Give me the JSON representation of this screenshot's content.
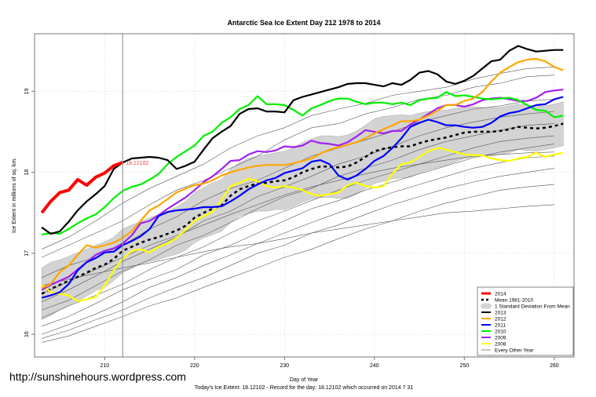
{
  "chart_data": {
    "type": "line",
    "title": "Antarctic Sea Ice Extent Day 212 1978 to 2014",
    "xlabel": "Day of Year",
    "ylabel": "Ice Extent in millions of sq. km.",
    "xlim": [
      202.2,
      262.2
    ],
    "ylim": [
      15.72,
      19.71
    ],
    "x_ticks": [
      210,
      220,
      230,
      240,
      250,
      260
    ],
    "y_ticks": [
      16,
      17,
      18,
      19
    ],
    "grid": true,
    "legend_position": "bottom-right",
    "current_day": 212,
    "current_value_label": "18.12102",
    "footer": "Today's Ice Extent: 18.12102  - Record for the day: 18.12102 which occurred on 2014 7 31",
    "watermark": "http://sunshinehours.wordpress.com",
    "x_start": 203,
    "mean": {
      "name": "Mean 1981-2010",
      "color": "#000000",
      "values": [
        16.5,
        16.56,
        16.61,
        16.66,
        16.71,
        16.76,
        16.82,
        16.86,
        16.93,
        17.03,
        17.08,
        17.13,
        17.17,
        17.2,
        17.24,
        17.28,
        17.34,
        17.44,
        17.5,
        17.55,
        17.59,
        17.71,
        17.79,
        17.83,
        17.86,
        17.87,
        17.89,
        17.9,
        17.94,
        18.0,
        18.04,
        18.07,
        18.07,
        18.06,
        18.07,
        18.12,
        18.19,
        18.26,
        18.29,
        18.31,
        18.32,
        18.32,
        18.36,
        18.39,
        18.41,
        18.43,
        18.46,
        18.49,
        18.5,
        18.5,
        18.5,
        18.51,
        18.53,
        18.56,
        18.55,
        18.54,
        18.55,
        18.57,
        18.6
      ]
    },
    "sd_band": {
      "name": "1 Standard Deviation From Mean",
      "color": "#d3d3d3",
      "values": [
        0.32,
        0.33,
        0.31,
        0.3,
        0.3,
        0.29,
        0.28,
        0.28,
        0.27,
        0.27,
        0.27,
        0.26,
        0.27,
        0.28,
        0.28,
        0.29,
        0.3,
        0.31,
        0.31,
        0.32,
        0.32,
        0.33,
        0.33,
        0.34,
        0.34,
        0.35,
        0.35,
        0.36,
        0.36,
        0.37,
        0.37,
        0.38,
        0.38,
        0.38,
        0.39,
        0.39,
        0.39,
        0.4,
        0.4,
        0.39,
        0.39,
        0.38,
        0.37,
        0.36,
        0.35,
        0.34,
        0.33,
        0.32,
        0.31,
        0.3,
        0.3,
        0.29,
        0.29,
        0.28,
        0.28,
        0.28,
        0.27,
        0.27,
        0.27
      ]
    },
    "other_years": {
      "name": "Every Other Year",
      "color": "#555555",
      "x_step": 3,
      "series": [
        [
          17.05,
          17.2,
          17.4,
          17.62,
          17.8,
          17.95,
          18.1,
          18.3,
          18.45,
          18.55,
          18.7,
          18.78,
          18.85,
          18.95,
          19.0,
          19.05,
          19.15,
          19.22,
          19.28,
          19.3
        ],
        [
          16.95,
          17.1,
          17.25,
          17.4,
          17.6,
          17.78,
          17.9,
          18.05,
          18.2,
          18.4,
          18.55,
          18.6,
          18.72,
          18.8,
          18.9,
          18.95,
          19.05,
          19.1,
          19.18,
          19.2
        ],
        [
          16.7,
          16.85,
          16.95,
          17.1,
          17.3,
          17.45,
          17.65,
          17.8,
          17.9,
          18.05,
          18.2,
          18.3,
          18.4,
          18.5,
          18.62,
          18.7,
          18.78,
          18.82,
          18.88,
          18.9
        ],
        [
          16.4,
          16.55,
          16.72,
          16.9,
          17.05,
          17.2,
          17.4,
          17.52,
          17.7,
          17.82,
          17.95,
          18.1,
          18.2,
          18.32,
          18.45,
          18.55,
          18.62,
          18.68,
          18.72,
          18.75
        ],
        [
          16.3,
          16.42,
          16.6,
          16.78,
          16.92,
          17.1,
          17.22,
          17.38,
          17.55,
          17.7,
          17.8,
          17.95,
          18.05,
          18.15,
          18.28,
          18.38,
          18.45,
          18.52,
          18.58,
          18.6
        ],
        [
          16.2,
          16.35,
          16.48,
          16.62,
          16.8,
          16.95,
          17.08,
          17.25,
          17.4,
          17.52,
          17.65,
          17.78,
          17.9,
          18.0,
          18.1,
          18.2,
          18.3,
          18.38,
          18.42,
          18.45
        ],
        [
          16.1,
          16.22,
          16.38,
          16.55,
          16.68,
          16.8,
          16.98,
          17.1,
          17.25,
          17.4,
          17.55,
          17.65,
          17.78,
          17.88,
          17.98,
          18.08,
          18.18,
          18.25,
          18.3,
          18.35
        ],
        [
          16.0,
          16.12,
          16.25,
          16.4,
          16.58,
          16.7,
          16.85,
          16.98,
          17.12,
          17.25,
          17.38,
          17.5,
          17.62,
          17.75,
          17.85,
          17.95,
          18.05,
          18.12,
          18.18,
          18.2
        ],
        [
          15.95,
          16.05,
          16.18,
          16.3,
          16.45,
          16.58,
          16.7,
          16.85,
          17.0,
          17.1,
          17.25,
          17.35,
          17.48,
          17.6,
          17.7,
          17.8,
          17.88,
          17.95,
          18.0,
          18.05
        ],
        [
          15.9,
          15.98,
          16.1,
          16.22,
          16.35,
          16.45,
          16.58,
          16.7,
          16.82,
          16.95,
          17.05,
          17.18,
          17.3,
          17.4,
          17.52,
          17.62,
          17.7,
          17.78,
          17.82,
          17.85
        ],
        [
          16.6,
          16.68,
          16.75,
          16.82,
          16.88,
          16.95,
          17.02,
          17.08,
          17.12,
          17.18,
          17.25,
          17.3,
          17.35,
          17.4,
          17.45,
          17.5,
          17.52,
          17.55,
          17.58,
          17.6
        ],
        [
          16.5,
          16.65,
          16.8,
          16.95,
          17.1,
          17.22,
          17.35,
          17.48,
          17.6,
          17.72,
          17.82,
          17.9,
          17.98,
          18.05,
          18.1,
          18.15,
          18.2,
          18.22,
          18.24,
          18.25
        ]
      ]
    },
    "series": [
      {
        "name": "2008",
        "color": "#ffff00",
        "values": [
          16.61,
          16.52,
          16.5,
          16.48,
          16.41,
          16.43,
          16.46,
          16.6,
          16.79,
          16.93,
          17.03,
          17.05,
          17.01,
          17.08,
          17.12,
          17.19,
          17.29,
          17.4,
          17.46,
          17.51,
          17.66,
          17.83,
          17.87,
          17.92,
          17.89,
          17.83,
          17.81,
          17.83,
          17.81,
          17.78,
          17.73,
          17.71,
          17.73,
          17.75,
          17.84,
          17.87,
          17.83,
          17.81,
          17.83,
          17.98,
          18.1,
          18.12,
          18.19,
          18.26,
          18.3,
          18.28,
          18.25,
          18.22,
          18.21,
          18.21,
          18.17,
          18.15,
          18.14,
          18.17,
          18.19,
          18.24,
          18.19,
          18.22,
          18.24
        ]
      },
      {
        "name": "2009",
        "color": "#a020f0",
        "values": [
          16.55,
          16.61,
          16.66,
          16.71,
          16.8,
          16.89,
          16.98,
          17.03,
          17.06,
          17.12,
          17.22,
          17.37,
          17.4,
          17.47,
          17.55,
          17.62,
          17.69,
          17.78,
          17.88,
          17.95,
          18.04,
          18.14,
          18.15,
          18.22,
          18.26,
          18.25,
          18.27,
          18.32,
          18.31,
          18.33,
          18.39,
          18.36,
          18.35,
          18.33,
          18.37,
          18.44,
          18.52,
          18.5,
          18.48,
          18.51,
          18.51,
          18.59,
          18.65,
          18.72,
          18.79,
          18.83,
          18.83,
          18.81,
          18.84,
          18.89,
          18.91,
          18.92,
          18.9,
          18.88,
          18.88,
          18.92,
          18.99,
          19.01,
          19.02
        ]
      },
      {
        "name": "2010",
        "color": "#00ee00",
        "values": [
          17.23,
          17.25,
          17.24,
          17.3,
          17.37,
          17.43,
          17.48,
          17.57,
          17.68,
          17.77,
          17.82,
          17.85,
          17.91,
          17.98,
          18.1,
          18.19,
          18.26,
          18.33,
          18.45,
          18.5,
          18.61,
          18.68,
          18.78,
          18.83,
          18.94,
          18.84,
          18.84,
          18.83,
          18.77,
          18.7,
          18.79,
          18.83,
          18.88,
          18.91,
          18.91,
          18.87,
          18.84,
          18.86,
          18.86,
          18.84,
          18.86,
          18.83,
          18.89,
          18.91,
          18.92,
          18.99,
          18.94,
          18.95,
          18.93,
          18.91,
          18.9,
          18.91,
          18.92,
          18.89,
          18.83,
          18.77,
          18.76,
          18.68,
          18.7
        ]
      },
      {
        "name": "2011",
        "color": "#0000ff",
        "values": [
          16.45,
          16.48,
          16.52,
          16.62,
          16.79,
          16.89,
          16.94,
          17.01,
          17.02,
          17.1,
          17.15,
          17.21,
          17.3,
          17.46,
          17.51,
          17.53,
          17.54,
          17.55,
          17.57,
          17.57,
          17.58,
          17.64,
          17.71,
          17.79,
          17.85,
          17.9,
          17.93,
          17.99,
          18.02,
          18.05,
          18.13,
          18.15,
          18.1,
          17.96,
          17.91,
          17.96,
          18.04,
          18.14,
          18.2,
          18.3,
          18.42,
          18.56,
          18.61,
          18.65,
          18.62,
          18.58,
          18.58,
          18.56,
          18.55,
          18.56,
          18.61,
          18.69,
          18.73,
          18.75,
          18.79,
          18.83,
          18.84,
          18.9,
          18.93
        ]
      },
      {
        "name": "2012",
        "color": "#ffa500",
        "values": [
          16.57,
          16.62,
          16.77,
          16.85,
          16.98,
          17.1,
          17.07,
          17.1,
          17.13,
          17.19,
          17.27,
          17.4,
          17.53,
          17.59,
          17.67,
          17.75,
          17.8,
          17.84,
          17.86,
          17.9,
          17.96,
          18.0,
          18.03,
          18.06,
          18.08,
          18.09,
          18.09,
          18.09,
          18.11,
          18.14,
          18.17,
          18.23,
          18.28,
          18.31,
          18.34,
          18.37,
          18.42,
          18.48,
          18.53,
          18.58,
          18.63,
          18.63,
          18.65,
          18.7,
          18.76,
          18.83,
          18.83,
          18.88,
          18.91,
          18.99,
          19.12,
          19.23,
          19.3,
          19.36,
          19.39,
          19.4,
          19.37,
          19.3,
          19.26
        ]
      },
      {
        "name": "2013",
        "color": "#000000",
        "values": [
          17.32,
          17.24,
          17.27,
          17.39,
          17.53,
          17.64,
          17.73,
          17.83,
          18.04,
          18.12,
          18.17,
          18.18,
          18.19,
          18.18,
          18.15,
          18.04,
          18.08,
          18.13,
          18.28,
          18.42,
          18.5,
          18.57,
          18.72,
          18.78,
          18.79,
          18.75,
          18.75,
          18.74,
          18.89,
          18.93,
          18.96,
          18.99,
          19.02,
          19.05,
          19.09,
          19.1,
          19.1,
          19.08,
          19.06,
          19.1,
          19.08,
          19.14,
          19.23,
          19.25,
          19.21,
          19.12,
          19.09,
          19.13,
          19.19,
          19.28,
          19.37,
          19.39,
          19.5,
          19.56,
          19.52,
          19.49,
          19.5,
          19.51,
          19.51
        ]
      },
      {
        "name": "2014",
        "color": "#ff0000",
        "values": [
          17.5,
          17.64,
          17.75,
          17.78,
          17.91,
          17.84,
          17.94,
          17.99,
          18.08,
          18.12102
        ]
      }
    ]
  }
}
